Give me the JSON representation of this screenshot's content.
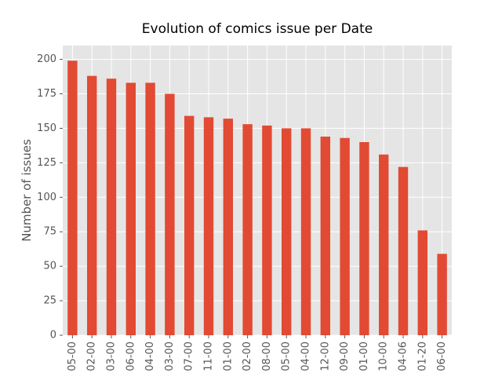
{
  "chart_data": {
    "type": "bar",
    "title": "Evolution of comics issue per Date",
    "xlabel": "",
    "ylabel": "Number of issues",
    "categories": [
      "05-00",
      "02-00",
      "03-00",
      "06-00",
      "04-00",
      "03-00",
      "07-00",
      "11-00",
      "01-00",
      "02-00",
      "08-00",
      "05-00",
      "04-00",
      "12-00",
      "09-00",
      "01-00",
      "10-00",
      "04-06",
      "01-20",
      "06-00"
    ],
    "values": [
      199,
      188,
      186,
      183,
      183,
      175,
      159,
      158,
      157,
      153,
      152,
      150,
      150,
      144,
      143,
      140,
      131,
      122,
      76,
      59
    ],
    "ylim": [
      0,
      210
    ],
    "yticks": [
      0,
      25,
      50,
      75,
      100,
      125,
      150,
      175,
      200
    ],
    "grid": true,
    "legend": "none",
    "colors": {
      "bar": "#E24A33",
      "background": "#E5E5E5",
      "grid": "#FFFFFF",
      "text": "#555555",
      "title": "#000000"
    }
  }
}
